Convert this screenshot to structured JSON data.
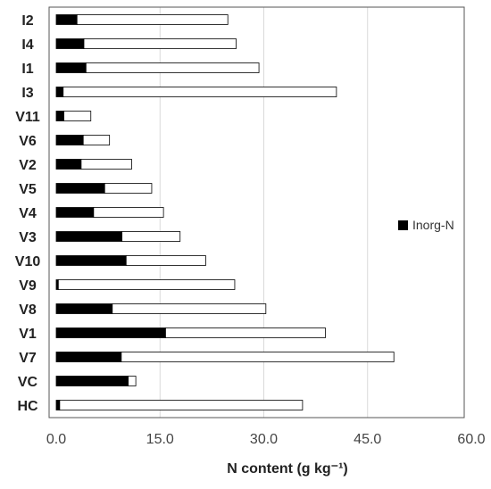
{
  "chart_data": {
    "type": "bar",
    "orientation": "horizontal",
    "stacked": true,
    "categories": [
      "I2",
      "I4",
      "I1",
      "I3",
      "V11",
      "V6",
      "V2",
      "V5",
      "V4",
      "V3",
      "V10",
      "V9",
      "V8",
      "V1",
      "V7",
      "VC",
      "HC"
    ],
    "series": [
      {
        "name": "Inorg-N",
        "color": "#000000",
        "values": [
          3.0,
          4.0,
          4.3,
          1.0,
          1.1,
          3.9,
          3.6,
          7.0,
          5.4,
          9.5,
          10.1,
          0.3,
          8.1,
          15.8,
          9.4,
          10.4,
          0.5
        ]
      },
      {
        "name": "",
        "color": "#ffffff",
        "values": [
          21.8,
          22.0,
          25.0,
          39.5,
          3.9,
          3.8,
          7.3,
          6.8,
          10.1,
          8.4,
          11.5,
          25.5,
          22.2,
          23.1,
          39.4,
          1.1,
          35.1
        ]
      }
    ],
    "xlabel": "N content (g kg⁻¹)",
    "ylabel": "",
    "xlim": [
      0,
      60
    ],
    "xticks": [
      "0.0",
      "15.0",
      "30.0",
      "45.0",
      "60.0"
    ],
    "xtick_values": [
      0,
      15,
      30,
      45,
      60
    ],
    "grid": "vertical",
    "legend": "right"
  }
}
